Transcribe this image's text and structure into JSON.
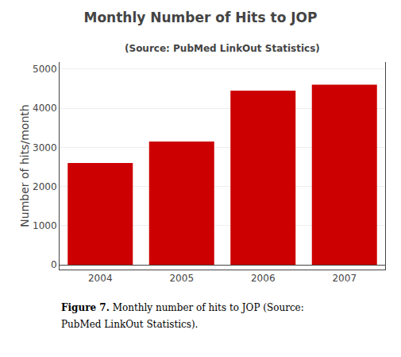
{
  "chart_data": {
    "type": "bar",
    "title": "Monthly Number of Hits to JOP",
    "subtitle": "(Source: PubMed LinkOut Statistics)",
    "ylabel": "Number of hits/month",
    "categories": [
      "2004",
      "2005",
      "2006",
      "2007"
    ],
    "values": [
      2600,
      3150,
      4450,
      4600
    ],
    "color": "#CC0000",
    "ylim": [
      -120,
      5180
    ],
    "yticks": [
      0,
      1000,
      2000,
      3000,
      4000,
      5000
    ],
    "grid": true,
    "annotations": [
      "Figure 7.",
      "Monthly number of hits to JOP (Source:",
      "PubMed LinkOut Statistics)."
    ]
  }
}
